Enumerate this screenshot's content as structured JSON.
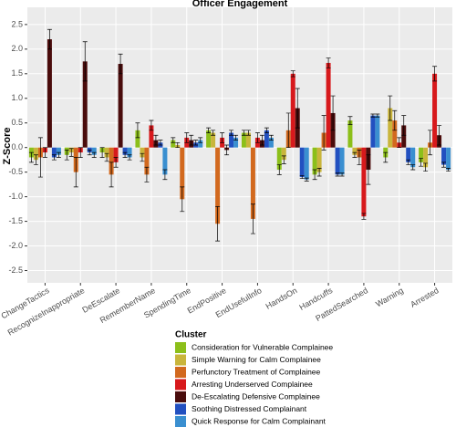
{
  "chart_data": {
    "type": "bar",
    "title": "Officer Engagement",
    "y_label": "Z-Score",
    "legend_title": "Cluster",
    "categories": [
      "ChangeTactics",
      "RecognizeInappropriate",
      "DeEscalate",
      "RememberName",
      "SpendingTime",
      "EndPositive",
      "EndUsefulInfo",
      "HandsOn",
      "Handcuffs",
      "PattedSearched",
      "Warning",
      "Arrested"
    ],
    "series": [
      {
        "name": "Consideration for Vulnerable Complainee",
        "color": "#8cbf1a",
        "values": [
          -0.2,
          -0.15,
          -0.1,
          0.35,
          0.15,
          0.35,
          0.3,
          -0.45,
          -0.55,
          0.55,
          -0.2,
          -0.3
        ],
        "errors": [
          0.1,
          0.1,
          0.1,
          0.15,
          0.05,
          0.05,
          0.05,
          0.1,
          0.1,
          0.08,
          0.1,
          0.08
        ]
      },
      {
        "name": "Simple Warning for Calm Complainee",
        "color": "#c9b53b",
        "values": [
          -0.25,
          -0.1,
          -0.2,
          -0.2,
          0.05,
          0.3,
          0.3,
          -0.25,
          -0.5,
          -0.15,
          0.8,
          -0.4
        ],
        "errors": [
          0.1,
          0.08,
          0.08,
          0.08,
          0.05,
          0.05,
          0.05,
          0.08,
          0.08,
          0.05,
          0.25,
          0.08
        ]
      },
      {
        "name": "Perfunctory Treatment of Complainee",
        "color": "#d2691e",
        "values": [
          -0.2,
          -0.5,
          -0.55,
          -0.55,
          -1.05,
          -1.55,
          -1.45,
          0.35,
          0.3,
          -0.2,
          0.55,
          0.1
        ],
        "errors": [
          0.4,
          0.3,
          0.25,
          0.15,
          0.25,
          0.35,
          0.3,
          0.35,
          0.35,
          0.15,
          0.2,
          0.25
        ]
      },
      {
        "name": "Arresting Underserved Complainee",
        "color": "#d7191c",
        "values": [
          -0.1,
          -0.1,
          -0.3,
          0.45,
          0.2,
          0.2,
          0.2,
          1.5,
          1.72,
          -1.4,
          0.1,
          1.5
        ],
        "errors": [
          0.1,
          0.1,
          0.1,
          0.1,
          0.1,
          0.1,
          0.1,
          0.06,
          0.1,
          0.06,
          0.1,
          0.15
        ]
      },
      {
        "name": "De-Escalating Defensive Complainee",
        "color": "#4a0c0c",
        "values": [
          2.2,
          1.75,
          1.7,
          0.15,
          0.15,
          -0.05,
          0.15,
          0.8,
          0.7,
          -0.45,
          0.45,
          0.25
        ],
        "errors": [
          0.2,
          0.4,
          0.2,
          0.1,
          0.1,
          0.1,
          0.1,
          0.4,
          0.35,
          0.3,
          0.2,
          0.2
        ]
      },
      {
        "name": "Soothing Distressed Complainant",
        "color": "#2250c0",
        "values": [
          -0.2,
          -0.1,
          -0.15,
          0.1,
          0.1,
          0.3,
          0.35,
          -0.6,
          -0.55,
          0.65,
          -0.3,
          -0.35
        ],
        "errors": [
          0.05,
          0.05,
          0.05,
          0.05,
          0.05,
          0.05,
          0.05,
          0.03,
          0.03,
          0.03,
          0.05,
          0.05
        ]
      },
      {
        "name": "Quick Response for Calm Complainant",
        "color": "#3a8fd0",
        "values": [
          -0.15,
          -0.15,
          -0.2,
          -0.55,
          0.15,
          0.2,
          0.2,
          -0.65,
          -0.55,
          0.65,
          -0.4,
          -0.45
        ],
        "errors": [
          0.05,
          0.05,
          0.05,
          0.1,
          0.05,
          0.05,
          0.05,
          0.03,
          0.03,
          0.03,
          0.05,
          0.03
        ]
      }
    ],
    "ylim": [
      -2.75,
      2.85
    ],
    "yticks": [
      {
        "value": -2.5,
        "label": "-2.5"
      },
      {
        "value": -2,
        "label": "-2.0"
      },
      {
        "value": -1.5,
        "label": "-1.5"
      },
      {
        "value": -1,
        "label": "-1.0"
      },
      {
        "value": -0.5,
        "label": "-0.5"
      },
      {
        "value": 0,
        "label": "0.0"
      },
      {
        "value": 0.5,
        "label": "0.5"
      },
      {
        "value": 1,
        "label": "1.0"
      },
      {
        "value": 1.5,
        "label": "1.5"
      },
      {
        "value": 2,
        "label": "2.0"
      },
      {
        "value": 2.5,
        "label": "2.5"
      }
    ],
    "grid": true
  }
}
